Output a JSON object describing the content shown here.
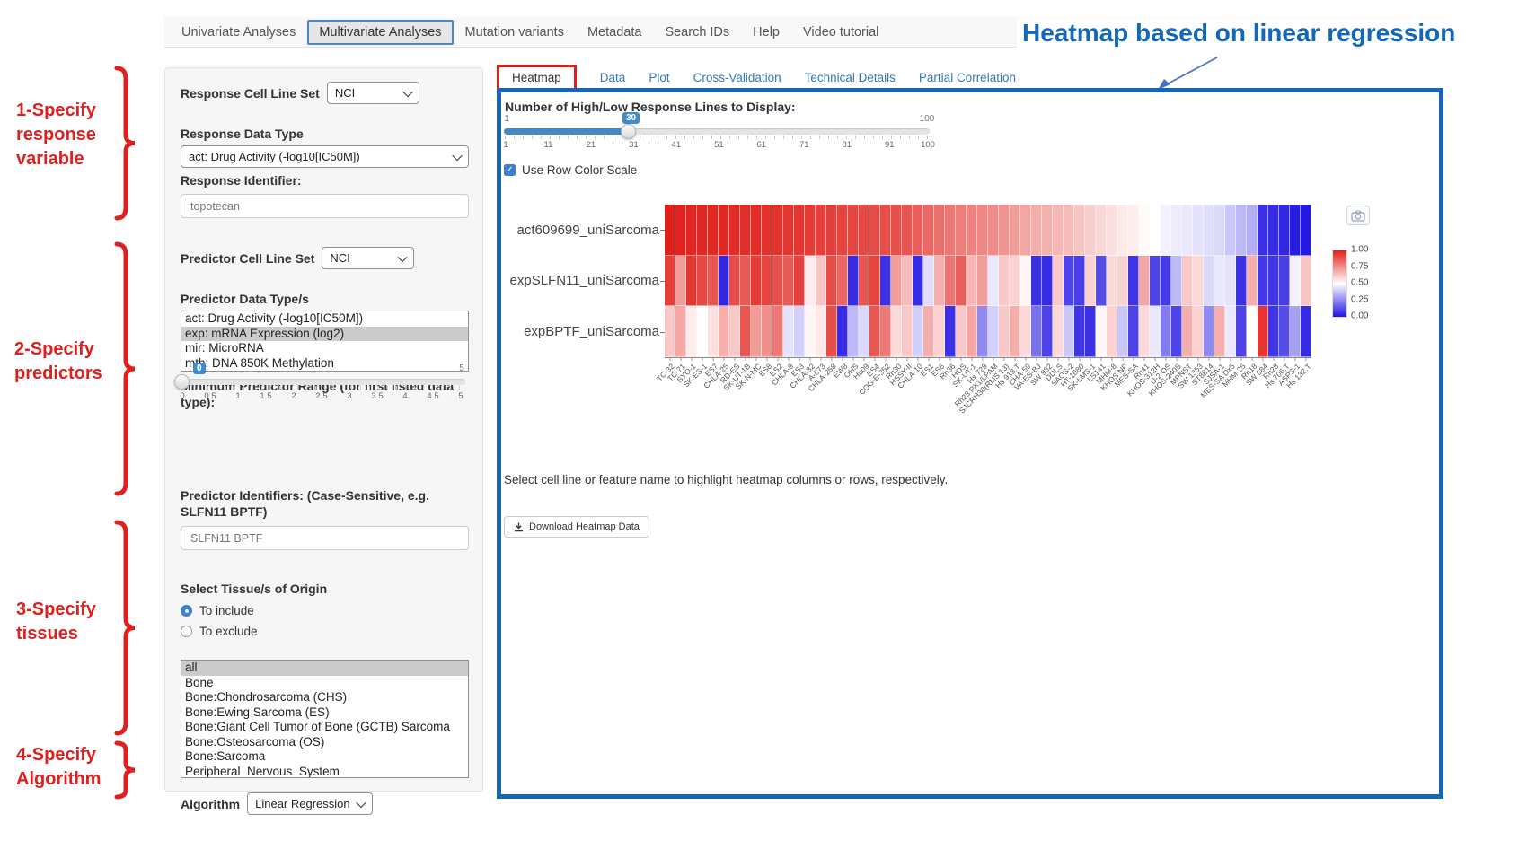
{
  "annotations": {
    "heading": "Heatmap based on linear regression",
    "steps": [
      "1-Specify response variable",
      "2-Specify predictors",
      "3-Specify tissues",
      "4-Specify Algorithm"
    ],
    "accent_red": "#e01f1f",
    "accent_blue": "#1268b9"
  },
  "nav": {
    "items": [
      "Univariate Analyses",
      "Multivariate Analyses",
      "Mutation variants",
      "Metadata",
      "Search IDs",
      "Help",
      "Video tutorial"
    ],
    "active": "Multivariate Analyses"
  },
  "sidebar": {
    "response_cell_line_set": {
      "label": "Response Cell Line Set",
      "value": "NCI"
    },
    "response_data_type": {
      "label": "Response Data Type",
      "value": "act: Drug Activity (-log10[IC50M])"
    },
    "response_identifier": {
      "label": "Response Identifier:",
      "value": "topotecan"
    },
    "predictor_cell_line_set": {
      "label": "Predictor Cell Line Set",
      "value": "NCI"
    },
    "predictor_data_types": {
      "label": "Predictor Data Type/s",
      "options": [
        "act: Drug Activity (-log10[IC50M])",
        "exp: mRNA Expression (log2)",
        "mir: MicroRNA",
        "mth: DNA 850K Methylation"
      ],
      "selected": "exp: mRNA Expression (log2)"
    },
    "min_predictor_range": {
      "label": "Minimum Predictor Range (for first listed data type):",
      "value": "0",
      "max_label": "5",
      "ticks": [
        "0",
        "0.5",
        "1",
        "1.5",
        "2",
        "2.5",
        "3",
        "3.5",
        "4",
        "4.5",
        "5"
      ]
    },
    "predictor_identifiers": {
      "label": "Predictor Identifiers: (Case-Sensitive, e.g. SLFN11 BPTF)",
      "value": "SLFN11 BPTF"
    },
    "tissues": {
      "label": "Select Tissue/s of Origin",
      "include_label": "To include",
      "exclude_label": "To exclude",
      "mode": "include",
      "options": [
        "all",
        "Bone",
        "Bone:Chondrosarcoma (CHS)",
        "Bone:Ewing Sarcoma (ES)",
        "Bone:Giant Cell Tumor of Bone (GCTB) Sarcoma",
        "Bone:Osteosarcoma (OS)",
        "Bone:Sarcoma",
        "Peripheral_Nervous_System"
      ],
      "selected": "all"
    },
    "algorithm": {
      "label": "Algorithm",
      "value": "Linear Regression"
    }
  },
  "main": {
    "tabs": [
      "Heatmap",
      "Data",
      "Plot",
      "Cross-Validation",
      "Technical Details",
      "Partial Correlation"
    ],
    "active_tab": "Heatmap",
    "lines_slider": {
      "label": "Number of High/Low Response Lines to Display:",
      "min_label": "1",
      "max_label": "100",
      "value": "30",
      "ticks": [
        "1",
        "11",
        "21",
        "31",
        "41",
        "51",
        "61",
        "71",
        "81",
        "91",
        "100"
      ]
    },
    "row_color_scale": {
      "label": "Use Row Color Scale",
      "checked": true,
      "check_icon": "✓"
    },
    "note": "Select cell line or feature name to highlight heatmap columns or rows, respectively.",
    "download_button": "Download Heatmap Data"
  },
  "chart_data": {
    "type": "heatmap",
    "rows": [
      "act609699_uniSarcoma",
      "expSLFN11_uniSarcoma",
      "expBPTF_uniSarcoma"
    ],
    "columns": [
      "TC-32",
      "TC-71",
      "SYO-1",
      "SK-ES-1",
      "ES7",
      "CHLA-25",
      "RD-ES",
      "SK-UT-1B",
      "SK-N-MC",
      "ES8",
      "ES2",
      "CHLA-9",
      "ES3",
      "CHLA-32",
      "A-673",
      "CHLA-258",
      "EW8",
      "OHS",
      "Hu09",
      "ES4",
      "COG-E-352",
      "Rh30",
      "HSSY-II",
      "CHLA-10",
      "ES1",
      "ES6",
      "Rh36",
      "HOS",
      "SK-UT-1",
      "Hs 729",
      "Rh28 PX1/LPAM",
      "SJCRH30(RMS 13)",
      "Hs 913.T",
      "CHA-59",
      "VA-ES-BJ",
      "SW 982",
      "DDLS",
      "SAOS-2",
      "HT-1080",
      "SK-LMS-1",
      "LS141",
      "MHM-8",
      "KHOS NP",
      "MES-SA",
      "Rh41",
      "KHOS-312H",
      "U-2 OS",
      "KHOS-240S",
      "MPNST",
      "SW 1353",
      "ST8814",
      "SJSA-1",
      "MES-SA Dx5",
      "MHM-25",
      "Rh18",
      "SW 684",
      "Rh28",
      "Hs 706.T",
      "ASPS-1",
      "Hs 132.T"
    ],
    "values": [
      [
        1.0,
        0.99,
        0.99,
        0.98,
        0.98,
        0.98,
        0.97,
        0.97,
        0.97,
        0.96,
        0.96,
        0.95,
        0.95,
        0.94,
        0.93,
        0.93,
        0.92,
        0.92,
        0.91,
        0.9,
        0.9,
        0.89,
        0.88,
        0.86,
        0.84,
        0.82,
        0.8,
        0.79,
        0.78,
        0.77,
        0.76,
        0.74,
        0.72,
        0.7,
        0.68,
        0.67,
        0.66,
        0.65,
        0.63,
        0.61,
        0.59,
        0.57,
        0.55,
        0.54,
        0.51,
        0.5,
        0.47,
        0.46,
        0.45,
        0.44,
        0.43,
        0.42,
        0.38,
        0.35,
        0.33,
        0.06,
        0.05,
        0.04,
        0.02,
        0.01
      ],
      [
        0.93,
        0.72,
        0.95,
        0.91,
        0.88,
        0.04,
        0.9,
        0.87,
        0.94,
        0.92,
        0.89,
        0.87,
        0.93,
        0.54,
        0.63,
        0.9,
        0.84,
        0.05,
        0.88,
        0.92,
        0.06,
        0.72,
        0.65,
        0.05,
        0.43,
        0.68,
        0.81,
        0.86,
        0.66,
        0.72,
        0.45,
        0.62,
        0.6,
        0.52,
        0.06,
        0.05,
        0.62,
        0.1,
        0.09,
        0.6,
        0.12,
        0.58,
        0.6,
        0.07,
        0.7,
        0.1,
        0.08,
        0.35,
        0.62,
        0.58,
        0.42,
        0.45,
        0.44,
        0.06,
        0.68,
        0.08,
        0.07,
        0.09,
        0.47,
        0.63
      ],
      [
        0.62,
        0.7,
        0.54,
        0.5,
        0.57,
        0.68,
        0.62,
        0.88,
        0.72,
        0.75,
        0.8,
        0.44,
        0.4,
        0.52,
        0.55,
        0.9,
        0.05,
        0.35,
        0.42,
        0.88,
        0.8,
        0.58,
        0.62,
        0.4,
        0.68,
        0.6,
        0.06,
        0.62,
        0.7,
        0.25,
        0.4,
        0.62,
        0.68,
        0.58,
        0.2,
        0.1,
        0.58,
        0.38,
        0.07,
        0.06,
        0.52,
        0.6,
        0.38,
        0.1,
        0.58,
        0.45,
        0.22,
        0.1,
        0.68,
        0.6,
        0.25,
        0.68,
        0.45,
        0.1,
        0.5,
        0.95,
        0.07,
        0.12,
        0.3,
        0.05
      ]
    ],
    "value_range": [
      0,
      1
    ],
    "colorbar": {
      "ticks": [
        "1.00",
        "0.75",
        "0.50",
        "0.25",
        "0.00"
      ],
      "high_color": "#e0201a",
      "mid_color": "#ffffff",
      "low_color": "#2014e0"
    }
  }
}
